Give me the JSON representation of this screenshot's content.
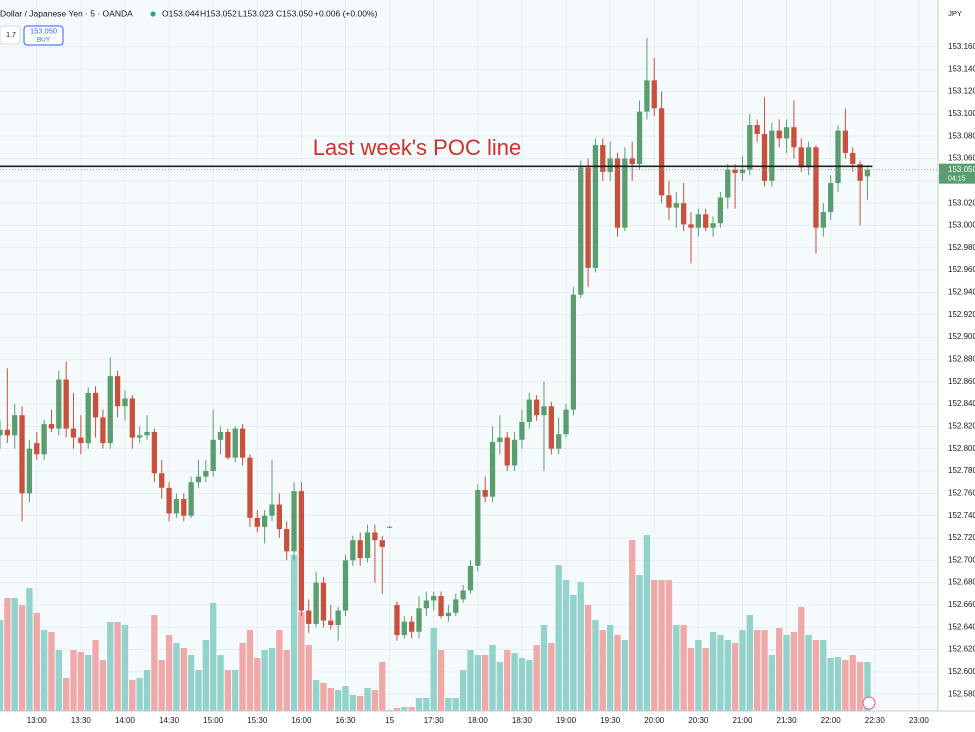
{
  "header": {
    "symbol": "Dollar / Japanese Yen · 5 · OANDA",
    "open": "O153.044",
    "high": "H153.052",
    "low": "L153.023",
    "close": "C153.050",
    "change": "+0.006 (+0.00%)",
    "spread": "1.7",
    "buy_price": "153.050",
    "buy_label": "BUY",
    "currency": "JPY",
    "countdown": "04:15"
  },
  "chart_data": {
    "type": "candlestick",
    "annotation": {
      "text": "Last week's POC line",
      "value": 153.053,
      "color": "#d0302a"
    },
    "last_price": {
      "value": 153.05,
      "label": "153.050"
    },
    "up_color": "#5a9e70",
    "down_color": "#c8503c",
    "volume_up_color": "#93d3cb",
    "volume_down_color": "#f0a9a9",
    "grid": true,
    "xlim": [
      755,
      1393
    ],
    "xticks": [
      {
        "value": 780,
        "label": "13:00"
      },
      {
        "value": 810,
        "label": "13:30"
      },
      {
        "value": 840,
        "label": "14:00"
      },
      {
        "value": 870,
        "label": "14:30"
      },
      {
        "value": 900,
        "label": "15:00"
      },
      {
        "value": 930,
        "label": "15:30"
      },
      {
        "value": 960,
        "label": "16:00"
      },
      {
        "value": 990,
        "label": "16:30"
      },
      {
        "value": 1020,
        "label": "15"
      },
      {
        "value": 1050,
        "label": "17:30"
      },
      {
        "value": 1080,
        "label": "18:00"
      },
      {
        "value": 1110,
        "label": "18:30"
      },
      {
        "value": 1140,
        "label": "19:00"
      },
      {
        "value": 1170,
        "label": "19:30"
      },
      {
        "value": 1200,
        "label": "20:00"
      },
      {
        "value": 1230,
        "label": "20:30"
      },
      {
        "value": 1260,
        "label": "21:00"
      },
      {
        "value": 1290,
        "label": "21:30"
      },
      {
        "value": 1320,
        "label": "22:00"
      },
      {
        "value": 1350,
        "label": "22:30"
      },
      {
        "value": 1380,
        "label": "23:00"
      }
    ],
    "ylim": [
      152.565,
      153.202
    ],
    "yticks": [
      {
        "value": 152.58,
        "label": "152.580"
      },
      {
        "value": 152.6,
        "label": "152.600"
      },
      {
        "value": 152.62,
        "label": "152.620"
      },
      {
        "value": 152.64,
        "label": "152.640"
      },
      {
        "value": 152.66,
        "label": "152.660"
      },
      {
        "value": 152.68,
        "label": "152.680"
      },
      {
        "value": 152.7,
        "label": "152.700"
      },
      {
        "value": 152.72,
        "label": "152.720"
      },
      {
        "value": 152.74,
        "label": "152.740"
      },
      {
        "value": 152.76,
        "label": "152.760"
      },
      {
        "value": 152.78,
        "label": "152.780"
      },
      {
        "value": 152.8,
        "label": "152.800"
      },
      {
        "value": 152.82,
        "label": "152.820"
      },
      {
        "value": 152.84,
        "label": "152.840"
      },
      {
        "value": 152.86,
        "label": "152.860"
      },
      {
        "value": 152.88,
        "label": "152.880"
      },
      {
        "value": 152.9,
        "label": "152.900"
      },
      {
        "value": 152.92,
        "label": "152.920"
      },
      {
        "value": 152.94,
        "label": "152.940"
      },
      {
        "value": 152.96,
        "label": "152.960"
      },
      {
        "value": 152.98,
        "label": "152.980"
      },
      {
        "value": 153.0,
        "label": "153.000"
      },
      {
        "value": 153.02,
        "label": "153.020"
      },
      {
        "value": 153.04,
        "label": "153.040"
      },
      {
        "value": 153.06,
        "label": "153.060"
      },
      {
        "value": 153.08,
        "label": "153.080"
      },
      {
        "value": 153.1,
        "label": "153.100"
      },
      {
        "value": 153.12,
        "label": "153.120"
      },
      {
        "value": 153.14,
        "label": "153.140"
      },
      {
        "value": 153.16,
        "label": "153.160"
      }
    ],
    "x": [
      755,
      760,
      765,
      770,
      775,
      780,
      785,
      790,
      795,
      800,
      805,
      810,
      815,
      820,
      825,
      830,
      835,
      840,
      845,
      850,
      855,
      860,
      865,
      870,
      875,
      880,
      885,
      890,
      895,
      900,
      905,
      910,
      915,
      920,
      925,
      930,
      935,
      940,
      945,
      950,
      955,
      960,
      965,
      970,
      975,
      980,
      985,
      990,
      995,
      1000,
      1005,
      1010,
      1015,
      1020,
      1025,
      1030,
      1035,
      1040,
      1045,
      1050,
      1055,
      1060,
      1065,
      1070,
      1075,
      1080,
      1085,
      1090,
      1095,
      1100,
      1105,
      1110,
      1115,
      1120,
      1125,
      1130,
      1135,
      1140,
      1145,
      1150,
      1155,
      1160,
      1165,
      1170,
      1175,
      1180,
      1185,
      1190,
      1195,
      1200,
      1205,
      1210,
      1215,
      1220,
      1225,
      1230,
      1235,
      1240,
      1245,
      1250,
      1255,
      1260,
      1265,
      1270,
      1275,
      1280,
      1285,
      1290,
      1295,
      1300,
      1305,
      1310,
      1315,
      1320,
      1325,
      1330,
      1335,
      1340,
      1345
    ],
    "open": [
      152.812,
      152.817,
      152.812,
      152.83,
      152.76,
      152.805,
      152.795,
      152.822,
      152.818,
      152.862,
      152.818,
      152.81,
      152.805,
      152.85,
      152.828,
      152.805,
      152.865,
      152.838,
      152.845,
      152.81,
      152.812,
      152.815,
      152.778,
      152.765,
      152.742,
      152.755,
      152.74,
      152.77,
      152.775,
      152.78,
      152.808,
      152.815,
      152.792,
      152.818,
      152.792,
      152.738,
      152.73,
      152.74,
      152.75,
      152.728,
      152.708,
      152.762,
      152.655,
      152.643,
      152.68,
      152.646,
      152.642,
      152.655,
      152.7,
      152.718,
      152.702,
      152.725,
      152.718,
      152.73,
      152.66,
      152.633,
      152.645,
      152.636,
      152.657,
      152.664,
      152.668,
      152.65,
      152.653,
      152.665,
      152.673,
      152.695,
      152.763,
      152.757,
      152.806,
      152.81,
      152.785,
      152.808,
      152.824,
      152.844,
      152.83,
      152.838,
      152.8,
      152.813,
      152.835,
      152.938,
      153.052,
      152.962,
      153.072,
      153.048,
      153.06,
      152.998,
      153.06,
      153.055,
      153.102,
      153.13,
      153.105,
      153.027,
      153.016,
      153.02,
      153.001,
      152.998,
      153.01,
      152.998,
      153.002,
      153.025,
      153.05,
      153.047,
      153.05,
      153.09,
      153.082,
      153.04,
      153.085,
      153.078,
      153.088,
      153.07,
      153.052,
      153.07,
      152.998,
      153.012,
      153.038,
      153.085,
      153.065,
      153.055,
      153.044
    ],
    "high": [
      152.825,
      152.872,
      152.84,
      152.838,
      152.808,
      152.815,
      152.826,
      152.835,
      152.87,
      152.878,
      152.85,
      152.83,
      152.855,
      152.856,
      152.835,
      152.882,
      152.87,
      152.852,
      152.848,
      152.82,
      152.83,
      152.818,
      152.79,
      152.77,
      152.76,
      152.76,
      152.775,
      152.79,
      152.79,
      152.835,
      152.82,
      152.818,
      152.82,
      152.822,
      152.795,
      152.745,
      152.745,
      152.79,
      152.76,
      152.735,
      152.77,
      152.77,
      152.665,
      152.69,
      152.685,
      152.66,
      152.658,
      152.705,
      152.722,
      152.725,
      152.732,
      152.732,
      152.722,
      152.731,
      152.663,
      152.65,
      152.65,
      152.668,
      152.672,
      152.672,
      152.672,
      152.66,
      152.67,
      152.678,
      152.7,
      152.768,
      152.775,
      152.82,
      152.83,
      152.815,
      152.815,
      152.835,
      152.85,
      152.848,
      152.86,
      152.842,
      152.828,
      152.84,
      152.945,
      153.058,
      153.06,
      153.078,
      153.078,
      153.075,
      153.065,
      153.07,
      153.075,
      153.112,
      153.168,
      153.15,
      153.12,
      153.04,
      153.03,
      153.038,
      153.012,
      153.015,
      153.015,
      153.008,
      153.03,
      153.055,
      153.055,
      153.062,
      153.1,
      153.095,
      153.115,
      153.092,
      153.095,
      153.095,
      153.112,
      153.078,
      153.075,
      153.072,
      153.02,
      153.045,
      153.09,
      153.105,
      153.07,
      153.058,
      153.052
    ],
    "low": [
      152.8,
      152.805,
      152.8,
      152.735,
      152.752,
      152.79,
      152.79,
      152.815,
      152.812,
      152.81,
      152.8,
      152.795,
      152.8,
      152.81,
      152.8,
      152.8,
      152.828,
      152.825,
      152.8,
      152.805,
      152.808,
      152.77,
      152.755,
      152.735,
      152.738,
      152.735,
      152.738,
      152.765,
      152.77,
      152.775,
      152.795,
      152.79,
      152.788,
      152.785,
      152.73,
      152.725,
      152.715,
      152.735,
      152.72,
      152.7,
      152.7,
      152.65,
      152.635,
      152.64,
      152.64,
      152.638,
      152.628,
      152.65,
      152.695,
      152.695,
      152.698,
      152.68,
      152.67,
      152.729,
      152.628,
      152.63,
      152.63,
      152.63,
      152.65,
      152.655,
      152.648,
      152.645,
      152.65,
      152.662,
      152.67,
      152.69,
      152.752,
      152.752,
      152.795,
      152.78,
      152.78,
      152.8,
      152.818,
      152.825,
      152.78,
      152.795,
      152.795,
      152.81,
      152.83,
      152.935,
      152.945,
      152.958,
      153.04,
      153.04,
      152.99,
      152.995,
      153.04,
      153.05,
      153.095,
      153.098,
      153.02,
      153.005,
      152.998,
      152.995,
      152.966,
      152.99,
      152.995,
      152.99,
      152.998,
      153.015,
      153.015,
      153.04,
      153.045,
      153.075,
      153.035,
      153.035,
      153.07,
      153.065,
      153.06,
      153.048,
      153.045,
      152.975,
      152.99,
      153.005,
      153.03,
      153.06,
      153.048,
      153.0,
      153.023
    ],
    "close": [
      152.817,
      152.812,
      152.83,
      152.76,
      152.8,
      152.795,
      152.822,
      152.818,
      152.862,
      152.818,
      152.81,
      152.805,
      152.85,
      152.828,
      152.805,
      152.865,
      152.838,
      152.845,
      152.81,
      152.812,
      152.815,
      152.778,
      152.765,
      152.742,
      152.755,
      152.74,
      152.77,
      152.775,
      152.78,
      152.808,
      152.815,
      152.792,
      152.818,
      152.792,
      152.738,
      152.73,
      152.74,
      152.75,
      152.728,
      152.708,
      152.762,
      152.655,
      152.643,
      152.68,
      152.646,
      152.642,
      152.655,
      152.7,
      152.718,
      152.702,
      152.725,
      152.718,
      152.712,
      152.73,
      152.633,
      152.645,
      152.636,
      152.657,
      152.664,
      152.668,
      152.65,
      152.653,
      152.665,
      152.673,
      152.695,
      152.763,
      152.757,
      152.806,
      152.81,
      152.785,
      152.808,
      152.824,
      152.844,
      152.83,
      152.838,
      152.8,
      152.813,
      152.835,
      152.938,
      153.052,
      152.962,
      153.072,
      153.048,
      153.06,
      152.998,
      153.06,
      153.055,
      153.102,
      153.13,
      153.105,
      153.027,
      153.016,
      153.02,
      153.001,
      152.998,
      153.01,
      152.998,
      153.002,
      153.025,
      153.05,
      153.047,
      153.05,
      153.09,
      153.082,
      153.04,
      153.085,
      153.078,
      153.088,
      153.07,
      153.052,
      153.07,
      152.998,
      153.012,
      153.038,
      153.085,
      153.065,
      153.055,
      153.04,
      153.05
    ],
    "volume": [
      91,
      113,
      113,
      106,
      123,
      98,
      81,
      79,
      61,
      33,
      61,
      59,
      56,
      71,
      51,
      89,
      89,
      86,
      31,
      33,
      41,
      96,
      51,
      76,
      68,
      63,
      56,
      41,
      71,
      108,
      56,
      41,
      41,
      68,
      81,
      53,
      61,
      63,
      81,
      61,
      156,
      99,
      66,
      31,
      28,
      23,
      21,
      25,
      16,
      15,
      23,
      21,
      49,
      1,
      3,
      4,
      4,
      13,
      13,
      83,
      61,
      13,
      13,
      41,
      61,
      56,
      56,
      66,
      49,
      61,
      58,
      53,
      51,
      66,
      86,
      68,
      146,
      131,
      116,
      129,
      106,
      91,
      81,
      86,
      76,
      71,
      171,
      136,
      176,
      131,
      131,
      131,
      86,
      86,
      63,
      71,
      63,
      79,
      76,
      71,
      68,
      81,
      96,
      81,
      81,
      56,
      83,
      76,
      79,
      104,
      76,
      71,
      71,
      53,
      54,
      51,
      56,
      49,
      49
    ]
  }
}
